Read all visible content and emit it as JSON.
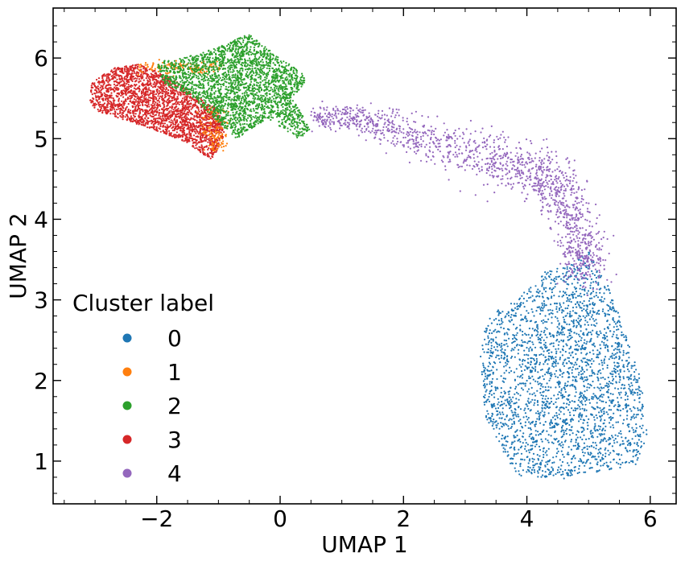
{
  "chart_data": {
    "type": "scatter",
    "title": "",
    "xlabel": "UMAP 1",
    "ylabel": "UMAP 2",
    "xlim": [
      -3.68,
      6.42
    ],
    "ylim": [
      0.47,
      6.62
    ],
    "xticks": [
      -2,
      0,
      2,
      4,
      6
    ],
    "xtick_labels": [
      "−2",
      "0",
      "2",
      "4",
      "6"
    ],
    "yticks": [
      1,
      2,
      3,
      4,
      5,
      6
    ],
    "ytick_labels": [
      "1",
      "2",
      "3",
      "4",
      "5",
      "6"
    ],
    "grid": false,
    "legend": {
      "title": "Cluster label",
      "placement": "lower-left"
    },
    "series": [
      {
        "name": "0",
        "color": "#1f77b4",
        "points": 2600,
        "approx_region": {
          "x": [
            3.25,
            5.95
          ],
          "y": [
            0.78,
            3.65
          ]
        }
      },
      {
        "name": "1",
        "color": "#ff7f0e",
        "points": 260,
        "approx_region": {
          "x": [
            -2.3,
            -0.85
          ],
          "y": [
            4.7,
            5.95
          ]
        }
      },
      {
        "name": "2",
        "color": "#2ca02c",
        "points": 2600,
        "approx_region": {
          "x": [
            -2.0,
            0.5
          ],
          "y": [
            4.9,
            6.32
          ]
        }
      },
      {
        "name": "3",
        "color": "#d62728",
        "points": 2400,
        "approx_region": {
          "x": [
            -3.15,
            -0.9
          ],
          "y": [
            4.72,
            5.92
          ]
        }
      },
      {
        "name": "4",
        "color": "#9467bd",
        "points": 1500,
        "approx_region": {
          "x": [
            0.5,
            5.0
          ],
          "y": [
            3.35,
            5.4
          ]
        }
      }
    ]
  }
}
